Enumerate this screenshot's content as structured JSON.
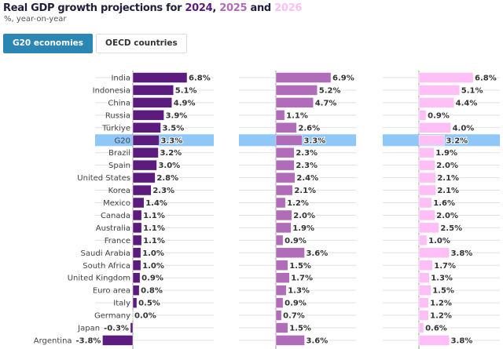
{
  "header": {
    "title_prefix": "Real GDP growth projections for ",
    "y1": "2024",
    "sep1": ", ",
    "y2": "2025",
    "sep2": " and ",
    "y3": "2026",
    "subtitle": "%, year-on-year"
  },
  "tabs": [
    {
      "label": "G20 economies",
      "active": true
    },
    {
      "label": "OECD countries",
      "active": false
    }
  ],
  "colors": {
    "2024": "#5c1c7e",
    "2025": "#b06cb8",
    "2026": "#fdbff5",
    "highlight": "#8fc8f8",
    "title": "#1f1f3a"
  },
  "chart_data": {
    "type": "bar",
    "orientation": "horizontal",
    "title": "Real GDP growth projections for 2024, 2025 and 2026",
    "subtitle": "%, year-on-year",
    "highlight": "G20",
    "categories": [
      "India",
      "Indonesia",
      "China",
      "Russia",
      "Türkiye",
      "G20",
      "Brazil",
      "Spain",
      "United States",
      "Korea",
      "Mexico",
      "Canada",
      "Australia",
      "France",
      "Saudi Arabia",
      "South Africa",
      "United Kingdom",
      "Euro area",
      "Italy",
      "Germany",
      "Japan",
      "Argentina"
    ],
    "series": [
      {
        "name": "2024",
        "values": [
          6.8,
          5.1,
          4.9,
          3.9,
          3.5,
          3.3,
          3.2,
          3.0,
          2.8,
          2.3,
          1.4,
          1.1,
          1.1,
          1.1,
          1.0,
          1.0,
          0.9,
          0.8,
          0.5,
          0.0,
          -0.3,
          -3.8
        ]
      },
      {
        "name": "2025",
        "values": [
          6.9,
          5.2,
          4.7,
          1.1,
          2.6,
          3.3,
          2.3,
          2.3,
          2.4,
          2.1,
          1.2,
          2.0,
          1.9,
          0.9,
          3.6,
          1.5,
          1.7,
          1.3,
          0.9,
          0.7,
          1.5,
          3.6
        ]
      },
      {
        "name": "2026",
        "values": [
          6.8,
          5.1,
          4.4,
          0.9,
          4.0,
          3.2,
          1.9,
          2.0,
          2.1,
          2.1,
          1.6,
          2.0,
          2.5,
          1.0,
          3.8,
          1.7,
          1.3,
          1.5,
          1.2,
          1.2,
          0.6,
          3.8
        ]
      }
    ],
    "value_suffix": "%"
  }
}
